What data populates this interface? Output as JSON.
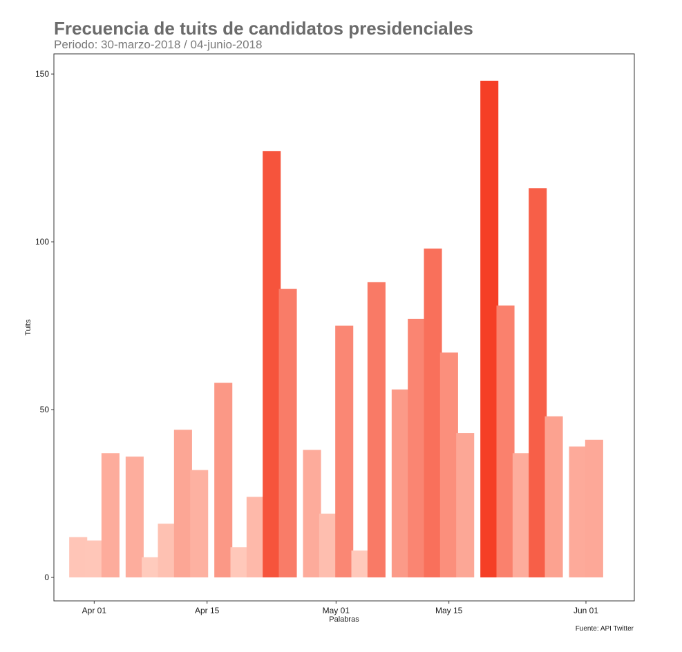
{
  "chart_data": {
    "type": "bar",
    "title": "Frecuencia de tuits de candidatos presidenciales",
    "subtitle": "Periodo: 30-marzo-2018 / 04-junio-2018",
    "xlabel": "Palabras",
    "ylabel": "Tuits",
    "caption": "Fuente: API Twitter",
    "x_ticks": [
      {
        "date": "2018-04-01",
        "label": "Apr 01"
      },
      {
        "date": "2018-04-15",
        "label": "Apr 15"
      },
      {
        "date": "2018-05-01",
        "label": "May 01"
      },
      {
        "date": "2018-05-15",
        "label": "May 15"
      },
      {
        "date": "2018-06-01",
        "label": "Jun 01"
      }
    ],
    "y_ticks": [
      0,
      50,
      100,
      150
    ],
    "ylim": [
      -7,
      156
    ],
    "xlim": [
      "2018-03-27",
      "2018-06-07"
    ],
    "bin_width_days": 2.2,
    "bars": [
      {
        "date": "2018-03-30",
        "value": 12
      },
      {
        "date": "2018-04-01",
        "value": 11
      },
      {
        "date": "2018-04-03",
        "value": 37
      },
      {
        "date": "2018-04-06",
        "value": 36
      },
      {
        "date": "2018-04-08",
        "value": 6
      },
      {
        "date": "2018-04-10",
        "value": 16
      },
      {
        "date": "2018-04-12",
        "value": 44
      },
      {
        "date": "2018-04-14",
        "value": 32
      },
      {
        "date": "2018-04-17",
        "value": 58
      },
      {
        "date": "2018-04-19",
        "value": 9
      },
      {
        "date": "2018-04-21",
        "value": 24
      },
      {
        "date": "2018-04-23",
        "value": 127
      },
      {
        "date": "2018-04-25",
        "value": 86
      },
      {
        "date": "2018-04-28",
        "value": 38
      },
      {
        "date": "2018-04-30",
        "value": 19
      },
      {
        "date": "2018-05-02",
        "value": 75
      },
      {
        "date": "2018-05-04",
        "value": 8
      },
      {
        "date": "2018-05-06",
        "value": 88
      },
      {
        "date": "2018-05-09",
        "value": 56
      },
      {
        "date": "2018-05-11",
        "value": 77
      },
      {
        "date": "2018-05-13",
        "value": 98
      },
      {
        "date": "2018-05-15",
        "value": 67
      },
      {
        "date": "2018-05-17",
        "value": 43
      },
      {
        "date": "2018-05-20",
        "value": 148
      },
      {
        "date": "2018-05-22",
        "value": 81
      },
      {
        "date": "2018-05-24",
        "value": 37
      },
      {
        "date": "2018-05-26",
        "value": 116
      },
      {
        "date": "2018-05-28",
        "value": 48
      },
      {
        "date": "2018-05-31",
        "value": 39
      },
      {
        "date": "2018-06-02",
        "value": 41
      }
    ],
    "color_low": "#ffcbbd",
    "color_high": "#f53f26",
    "grid": false,
    "legend": "none"
  }
}
